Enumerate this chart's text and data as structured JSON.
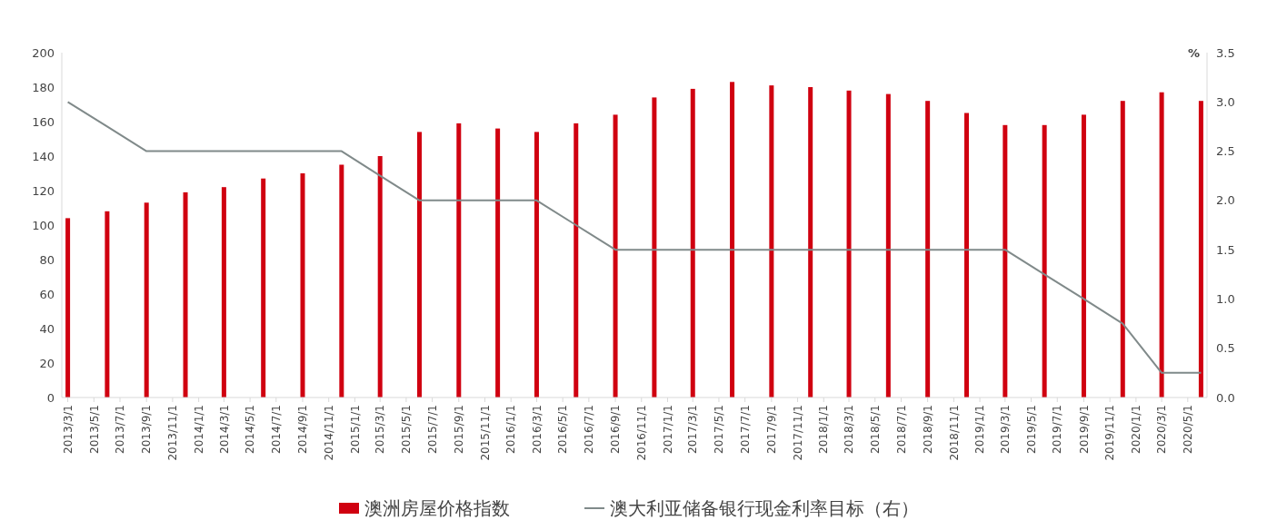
{
  "chart_data": {
    "type": "bar",
    "x": [
      "2013-03-01",
      "2013-06-01",
      "2013-09-01",
      "2013-12-01",
      "2014-03-01",
      "2014-06-01",
      "2014-09-01",
      "2014-12-01",
      "2015-03-01",
      "2015-06-01",
      "2015-09-01",
      "2015-12-01",
      "2016-03-01",
      "2016-06-01",
      "2016-09-01",
      "2016-12-01",
      "2017-03-01",
      "2017-06-01",
      "2017-09-01",
      "2017-12-01",
      "2018-03-01",
      "2018-06-01",
      "2018-09-01",
      "2018-12-01",
      "2019-03-01",
      "2019-06-01",
      "2019-09-01",
      "2019-12-01",
      "2020-03-01",
      "2020-06-01"
    ],
    "series": [
      {
        "name": "澳洲房屋价格指数",
        "color": "#d00010",
        "values": [
          104,
          108,
          113,
          119,
          122,
          127,
          130,
          135,
          140,
          154,
          159,
          156,
          154,
          159,
          164,
          174,
          179,
          183,
          181,
          180,
          178,
          176,
          172,
          165,
          158,
          158,
          164,
          172,
          177,
          172
        ]
      },
      {
        "name": "澳大利亚储备银行现金利率目标（右）",
        "type": "line",
        "axis": "y2",
        "color": "#808a8a",
        "values": [
          3.0,
          2.75,
          2.5,
          2.5,
          2.5,
          2.5,
          2.5,
          2.5,
          2.25,
          2.0,
          2.0,
          2.0,
          2.0,
          1.75,
          1.5,
          1.5,
          1.5,
          1.5,
          1.5,
          1.5,
          1.5,
          1.5,
          1.5,
          1.5,
          1.5,
          1.25,
          1.0,
          0.75,
          0.25,
          0.25
        ]
      }
    ],
    "xlim": [
      "2013-02-15",
      "2020-06-15"
    ],
    "xticks": [
      {
        "value": "2013-03-01",
        "label": "2013/3/1"
      },
      {
        "value": "2013-05-01",
        "label": "2013/5/1"
      },
      {
        "value": "2013-07-01",
        "label": "2013/7/1"
      },
      {
        "value": "2013-09-01",
        "label": "2013/9/1"
      },
      {
        "value": "2013-11-01",
        "label": "2013/11/1"
      },
      {
        "value": "2014-01-01",
        "label": "2014/1/1"
      },
      {
        "value": "2014-03-01",
        "label": "2014/3/1"
      },
      {
        "value": "2014-05-01",
        "label": "2014/5/1"
      },
      {
        "value": "2014-07-01",
        "label": "2014/7/1"
      },
      {
        "value": "2014-09-01",
        "label": "2014/9/1"
      },
      {
        "value": "2014-11-01",
        "label": "2014/11/1"
      },
      {
        "value": "2015-01-01",
        "label": "2015/1/1"
      },
      {
        "value": "2015-03-01",
        "label": "2015/3/1"
      },
      {
        "value": "2015-05-01",
        "label": "2015/5/1"
      },
      {
        "value": "2015-07-01",
        "label": "2015/7/1"
      },
      {
        "value": "2015-09-01",
        "label": "2015/9/1"
      },
      {
        "value": "2015-11-01",
        "label": "2015/11/1"
      },
      {
        "value": "2016-01-01",
        "label": "2016/1/1"
      },
      {
        "value": "2016-03-01",
        "label": "2016/3/1"
      },
      {
        "value": "2016-05-01",
        "label": "2016/5/1"
      },
      {
        "value": "2016-07-01",
        "label": "2016/7/1"
      },
      {
        "value": "2016-09-01",
        "label": "2016/9/1"
      },
      {
        "value": "2016-11-01",
        "label": "2016/11/1"
      },
      {
        "value": "2017-01-01",
        "label": "2017/1/1"
      },
      {
        "value": "2017-03-01",
        "label": "2017/3/1"
      },
      {
        "value": "2017-05-01",
        "label": "2017/5/1"
      },
      {
        "value": "2017-07-01",
        "label": "2017/7/1"
      },
      {
        "value": "2017-09-01",
        "label": "2017/9/1"
      },
      {
        "value": "2017-11-01",
        "label": "2017/11/1"
      },
      {
        "value": "2018-01-01",
        "label": "2018/1/1"
      },
      {
        "value": "2018-03-01",
        "label": "2018/3/1"
      },
      {
        "value": "2018-05-01",
        "label": "2018/5/1"
      },
      {
        "value": "2018-07-01",
        "label": "2018/7/1"
      },
      {
        "value": "2018-09-01",
        "label": "2018/9/1"
      },
      {
        "value": "2018-11-01",
        "label": "2018/11/1"
      },
      {
        "value": "2019-01-01",
        "label": "2019/1/1"
      },
      {
        "value": "2019-03-01",
        "label": "2019/3/1"
      },
      {
        "value": "2019-05-01",
        "label": "2019/5/1"
      },
      {
        "value": "2019-07-01",
        "label": "2019/7/1"
      },
      {
        "value": "2019-09-01",
        "label": "2019/9/1"
      },
      {
        "value": "2019-11-01",
        "label": "2019/11/1"
      },
      {
        "value": "2020-01-01",
        "label": "2020/1/1"
      },
      {
        "value": "2020-03-01",
        "label": "2020/3/1"
      },
      {
        "value": "2020-05-01",
        "label": "2020/5/1"
      }
    ],
    "ylim": [
      0,
      200
    ],
    "yticks": [
      0,
      20,
      40,
      60,
      80,
      100,
      120,
      140,
      160,
      180,
      200
    ],
    "y2lim": [
      0,
      3.5
    ],
    "y2ticks": [
      {
        "value": 0,
        "label": "0.0"
      },
      {
        "value": 0.5,
        "label": "0.5"
      },
      {
        "value": 1,
        "label": "1.0"
      },
      {
        "value": 1.5,
        "label": "1.5"
      },
      {
        "value": 2,
        "label": "2.0"
      },
      {
        "value": 2.5,
        "label": "2.5"
      },
      {
        "value": 3,
        "label": "3.0"
      },
      {
        "value": 3.5,
        "label": "3.5"
      }
    ],
    "y2label": "%",
    "legend": "bottom",
    "grid": false
  }
}
